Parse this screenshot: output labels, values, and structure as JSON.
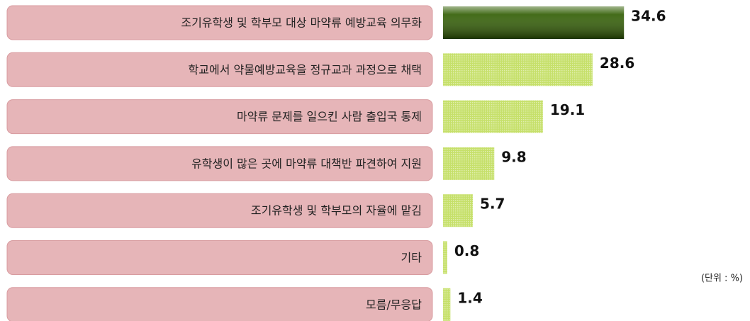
{
  "chart_data": {
    "type": "bar",
    "orientation": "horizontal",
    "categories": [
      "조기유학생 및 학부모 대상 마약류 예방교육 의무화",
      "학교에서 약물예방교육을 정규교과 과정으로 채택",
      "마약류 문제를 일으킨 사람 출입국 통제",
      "유학생이 많은 곳에 마약류 대책반 파견하여 지원",
      "조기유학생 및 학부모의 자율에 맡김",
      "기타",
      "모름/무응답"
    ],
    "values": [
      34.6,
      28.6,
      19.1,
      9.8,
      5.7,
      0.8,
      1.4
    ],
    "colors": [
      "#2f5c00",
      "#c6e06a",
      "#c6e06a",
      "#c6e06a",
      "#c6e06a",
      "#c6e06a",
      "#c6e06a"
    ],
    "xlim": [
      0,
      40
    ],
    "unit_note": "(단위 : %)"
  }
}
